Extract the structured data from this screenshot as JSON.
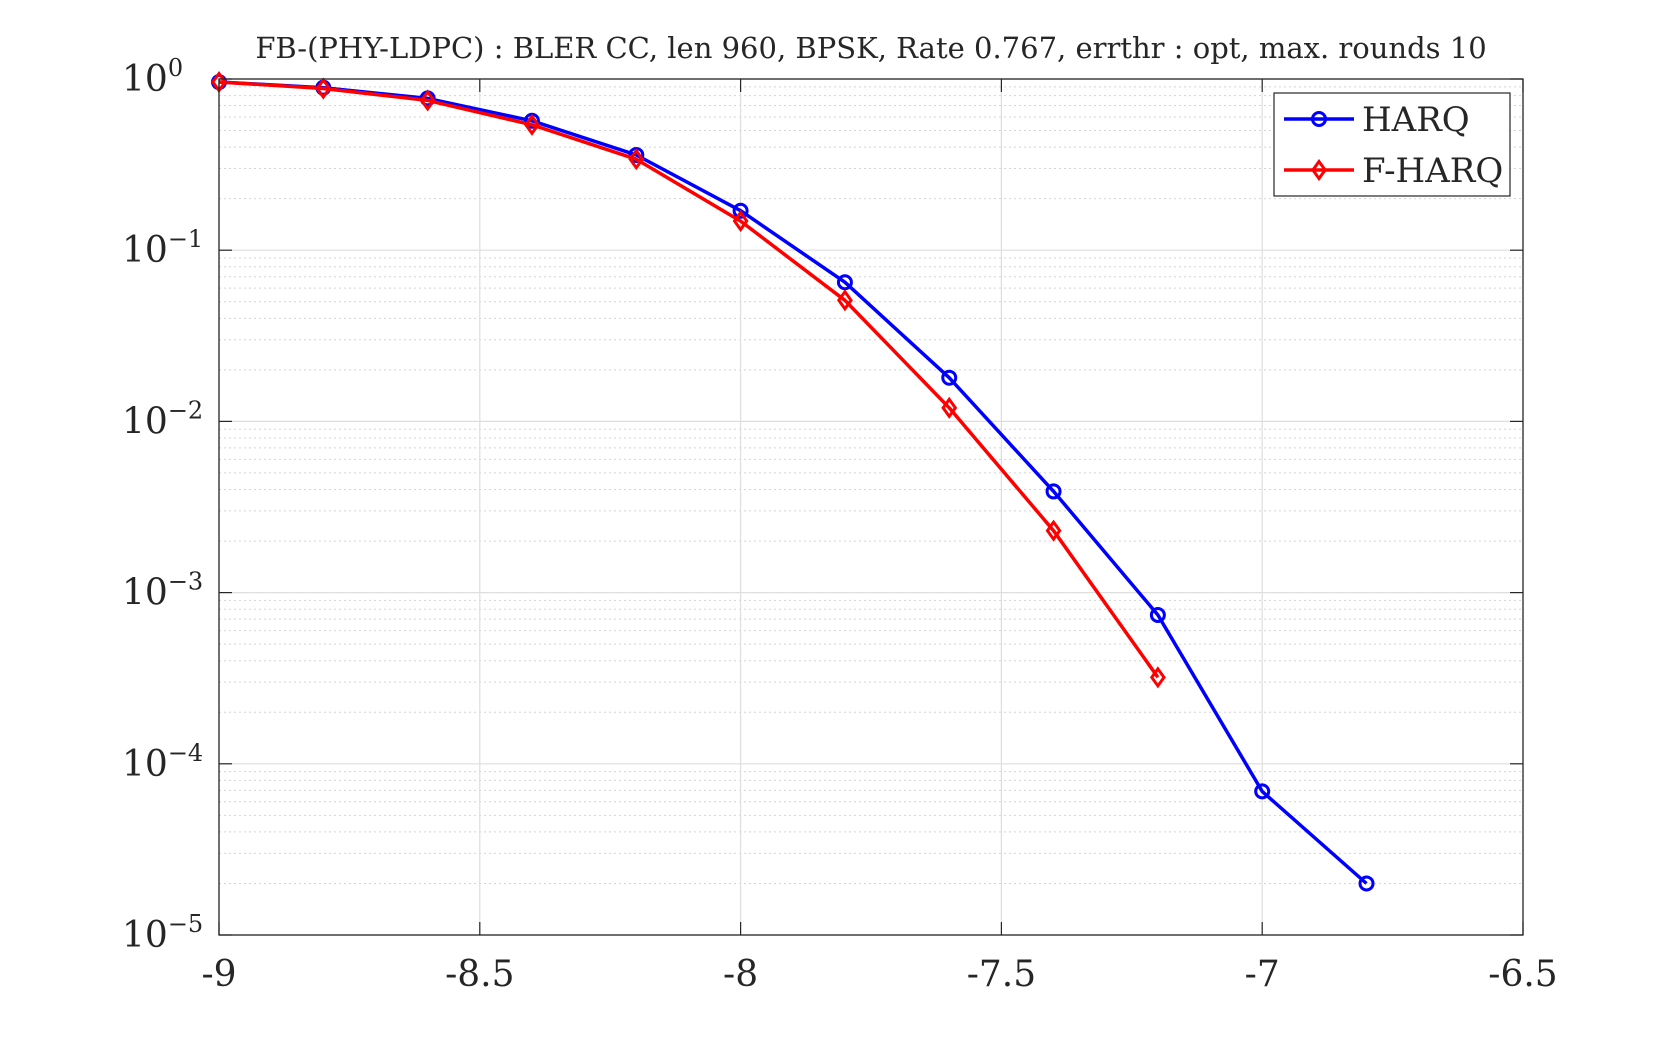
{
  "chart_data": {
    "type": "line",
    "title": "FB-(PHY-LDPC) : BLER CC, len 960, BPSK, Rate 0.767, errthr : opt, max. rounds 10",
    "xlabel": "",
    "ylabel": "",
    "xlim": [
      -9,
      -6.5
    ],
    "ylim": [
      1e-05,
      1
    ],
    "yscale": "log",
    "grid": true,
    "minor_grid": true,
    "legend_position": "top-right",
    "x_ticks": [
      {
        "value": -9,
        "label": "-9"
      },
      {
        "value": -8.5,
        "label": "-8.5"
      },
      {
        "value": -8,
        "label": "-8"
      },
      {
        "value": -7.5,
        "label": "-7.5"
      },
      {
        "value": -7,
        "label": "-7"
      },
      {
        "value": -6.5,
        "label": "-6.5"
      }
    ],
    "y_ticks": [
      {
        "value": 1,
        "base": "10",
        "exp": "0"
      },
      {
        "value": 0.1,
        "base": "10",
        "exp": "−1"
      },
      {
        "value": 0.01,
        "base": "10",
        "exp": "−2"
      },
      {
        "value": 0.001,
        "base": "10",
        "exp": "−3"
      },
      {
        "value": 0.0001,
        "base": "10",
        "exp": "−4"
      },
      {
        "value": 1e-05,
        "base": "10",
        "exp": "−5"
      }
    ],
    "series": [
      {
        "name": "HARQ",
        "color": "#0000ff",
        "marker": "circle",
        "x": [
          -9.0,
          -8.8,
          -8.6,
          -8.4,
          -8.2,
          -8.0,
          -7.8,
          -7.6,
          -7.4,
          -7.2,
          -7.0,
          -6.8
        ],
        "y": [
          0.96,
          0.89,
          0.77,
          0.57,
          0.36,
          0.17,
          0.065,
          0.018,
          0.0039,
          0.00074,
          6.9e-05,
          2e-05
        ]
      },
      {
        "name": "F-HARQ",
        "color": "#ff0000",
        "marker": "diamond",
        "x": [
          -9.0,
          -8.8,
          -8.6,
          -8.4,
          -8.2,
          -8.0,
          -7.8,
          -7.6,
          -7.4,
          -7.2
        ],
        "y": [
          0.96,
          0.88,
          0.75,
          0.54,
          0.34,
          0.148,
          0.051,
          0.012,
          0.0023,
          0.00032
        ]
      }
    ]
  }
}
